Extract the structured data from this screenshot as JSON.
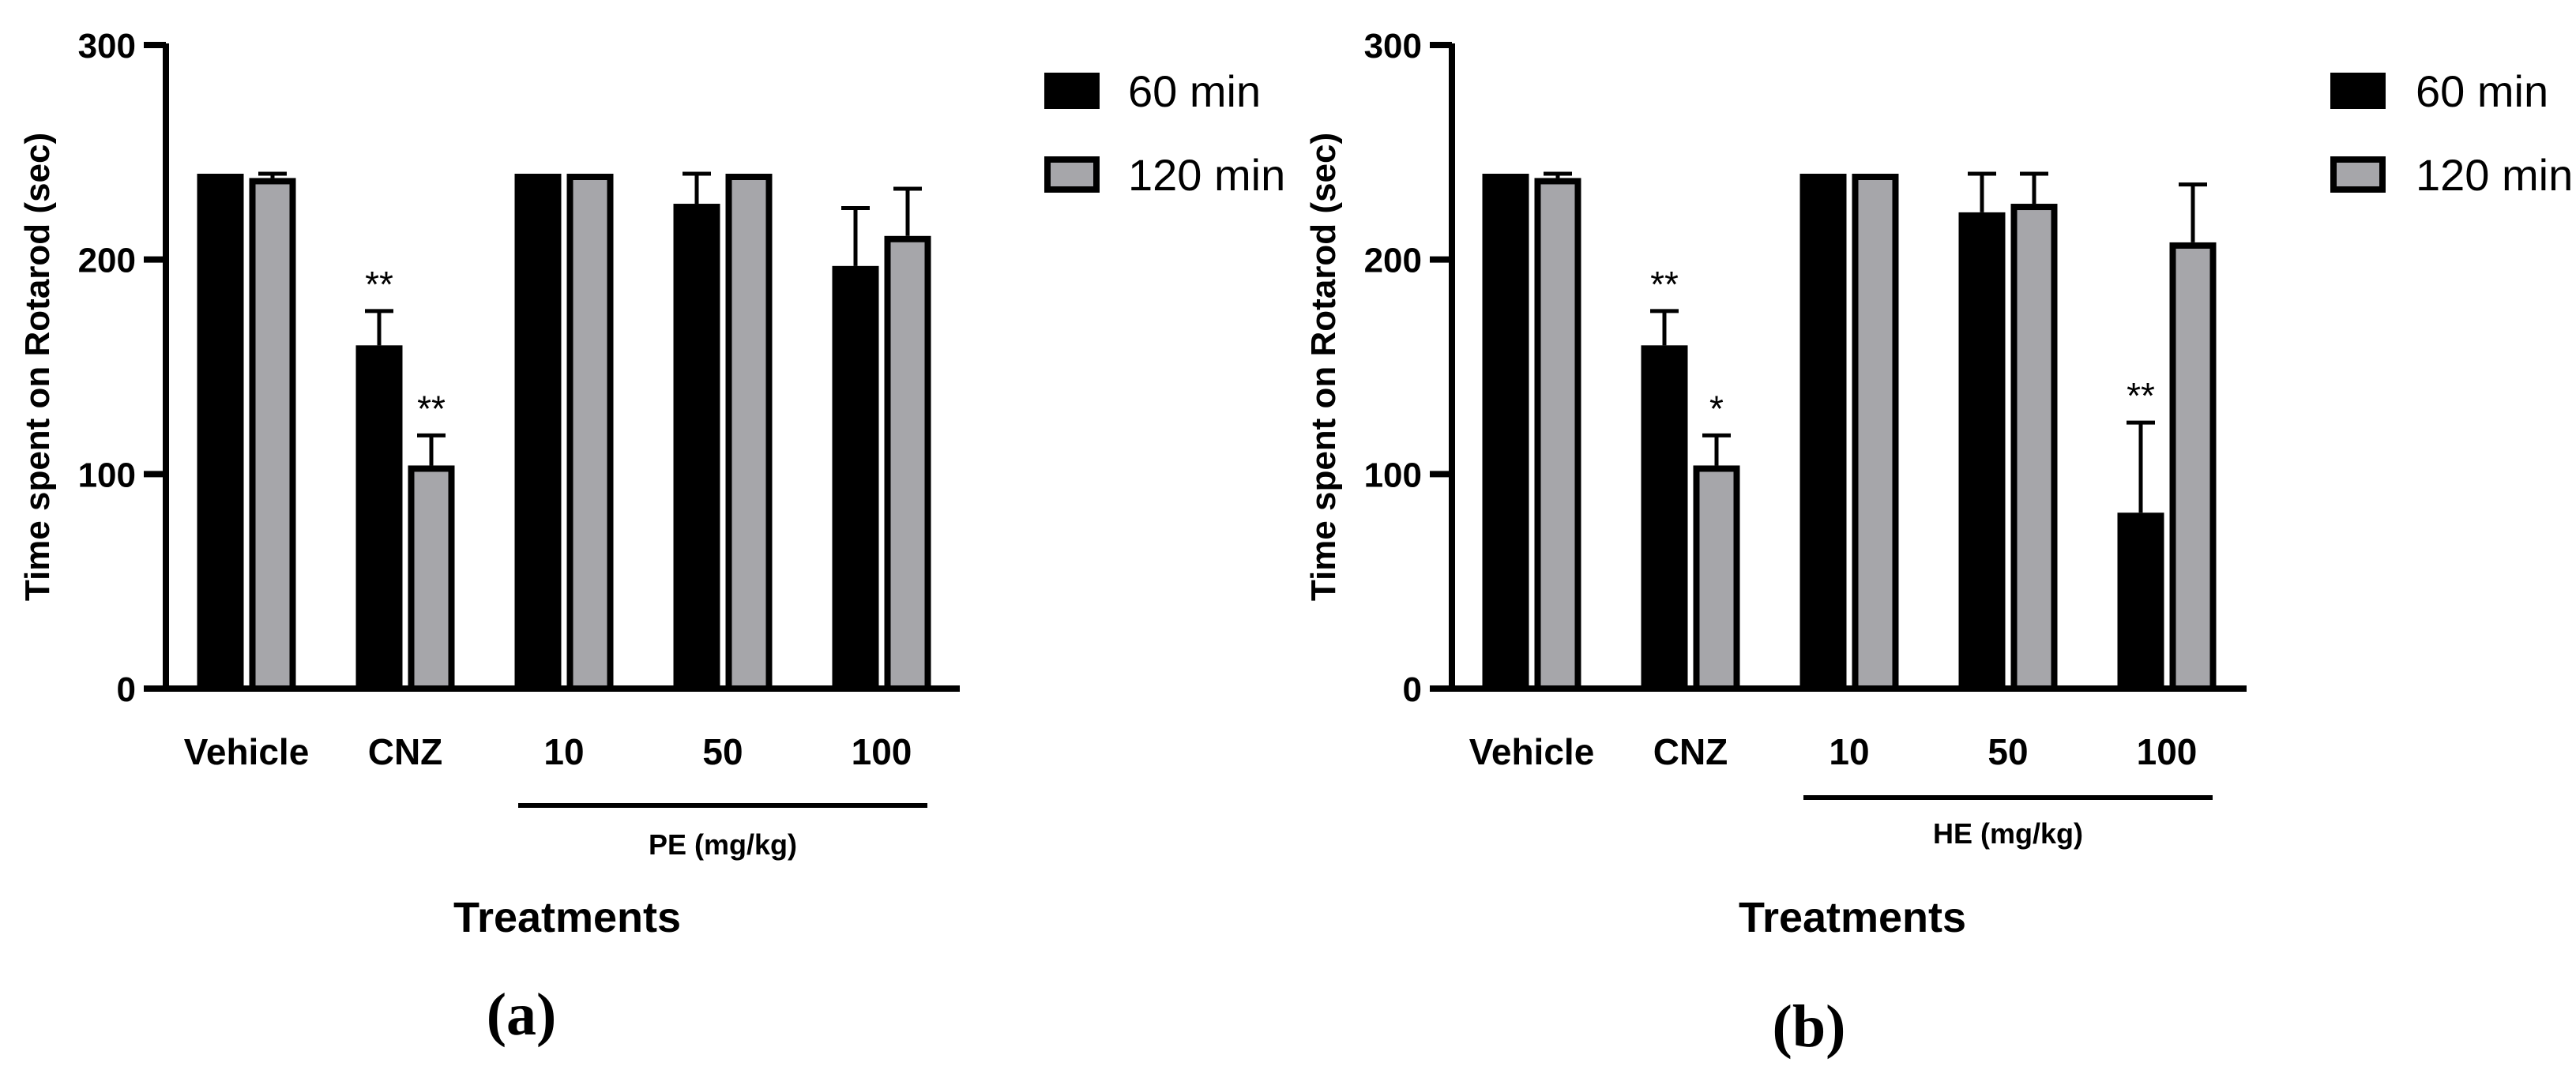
{
  "chart_data": [
    {
      "type": "bar",
      "panel_label": "(a)",
      "title": "",
      "ylabel": "Time spent on Rotarod (sec)",
      "xlabel": "Treatments",
      "ylim": [
        0,
        300
      ],
      "yticks": [
        0,
        100,
        200,
        300
      ],
      "categories": [
        "Vehicle",
        "CNZ",
        "10",
        "50",
        "100"
      ],
      "group_bracket": {
        "label": "PE (mg/kg)",
        "from_index": 2,
        "to_index": 4
      },
      "legend": "top-right",
      "series": [
        {
          "name": "60 min",
          "color": "#000000",
          "values": [
            240,
            160,
            240,
            226,
            197
          ],
          "errors": [
            0,
            16,
            0,
            14,
            27
          ],
          "significance": [
            "",
            "**",
            "",
            "",
            ""
          ]
        },
        {
          "name": "120 min",
          "color": "#a6a6aa",
          "values": [
            238,
            104,
            240,
            240,
            211
          ],
          "errors": [
            2,
            14,
            0,
            0,
            22
          ],
          "significance": [
            "",
            "**",
            "",
            "",
            ""
          ]
        }
      ]
    },
    {
      "type": "bar",
      "panel_label": "(b)",
      "title": "",
      "ylabel": "Time spent on Rotarod (sec)",
      "xlabel": "Treatments",
      "ylim": [
        0,
        300
      ],
      "yticks": [
        0,
        100,
        200,
        300
      ],
      "categories": [
        "Vehicle",
        "CNZ",
        "10",
        "50",
        "100"
      ],
      "group_bracket": {
        "label": "HE (mg/kg)",
        "from_index": 2,
        "to_index": 4
      },
      "legend": "top-right",
      "series": [
        {
          "name": "60 min",
          "color": "#000000",
          "values": [
            240,
            160,
            240,
            222,
            82
          ],
          "errors": [
            0,
            16,
            0,
            18,
            42
          ],
          "significance": [
            "",
            "**",
            "",
            "",
            "**"
          ]
        },
        {
          "name": "120 min",
          "color": "#a6a6aa",
          "values": [
            238,
            104,
            240,
            226,
            208
          ],
          "errors": [
            2,
            14,
            0,
            14,
            27
          ],
          "significance": [
            "",
            "*",
            "",
            "",
            ""
          ]
        }
      ]
    }
  ]
}
